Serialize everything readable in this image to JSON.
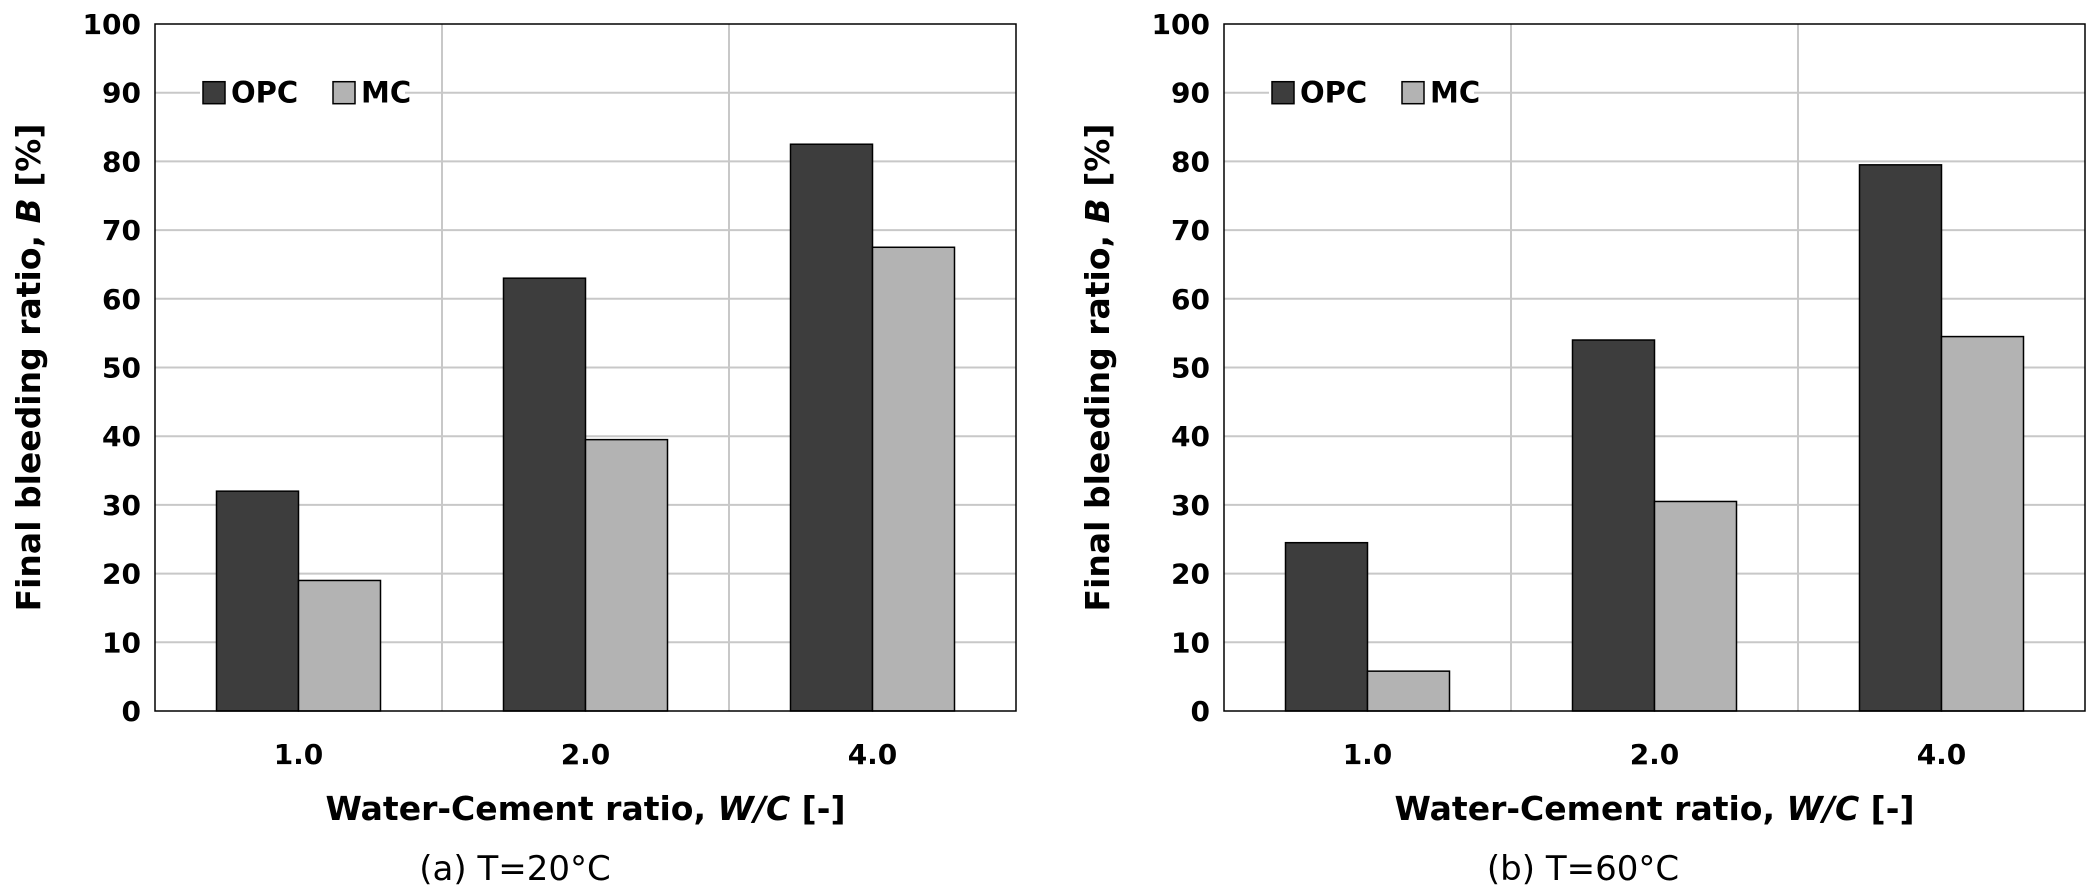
{
  "chart_data": [
    {
      "type": "bar",
      "caption": "(a) T=20°C",
      "categories": [
        "1.0",
        "2.0",
        "4.0"
      ],
      "series": [
        {
          "name": "OPC",
          "color": "#3d3d3d",
          "values": [
            32,
            63,
            82.5
          ]
        },
        {
          "name": "MC",
          "color": "#b3b3b3",
          "values": [
            19,
            39.5,
            67.5
          ]
        }
      ],
      "xlabel_main": "Water-Cement ratio, ",
      "xlabel_var": "W/C",
      "xlabel_unit": " [-]",
      "ylabel_main": "Final bleeding ratio, ",
      "ylabel_var": "B",
      "ylabel_unit": " [%]",
      "ylim": [
        0,
        100
      ],
      "yticks": [
        "0",
        "10",
        "20",
        "30",
        "40",
        "50",
        "60",
        "70",
        "80",
        "90",
        "100"
      ],
      "legend": "top-left",
      "grid": true
    },
    {
      "type": "bar",
      "caption": "(b) T=60°C",
      "categories": [
        "1.0",
        "2.0",
        "4.0"
      ],
      "series": [
        {
          "name": "OPC",
          "color": "#3d3d3d",
          "values": [
            24.5,
            54,
            79.5
          ]
        },
        {
          "name": "MC",
          "color": "#b3b3b3",
          "values": [
            5.8,
            30.5,
            54.5
          ]
        }
      ],
      "xlabel_main": "Water-Cement ratio, ",
      "xlabel_var": "W/C",
      "xlabel_unit": " [-]",
      "ylabel_main": "Final bleeding ratio, ",
      "ylabel_var": "B",
      "ylabel_unit": " [%]",
      "ylim": [
        0,
        100
      ],
      "yticks": [
        "0",
        "10",
        "20",
        "30",
        "40",
        "50",
        "60",
        "70",
        "80",
        "90",
        "100"
      ],
      "legend": "top-left",
      "grid": true
    }
  ]
}
